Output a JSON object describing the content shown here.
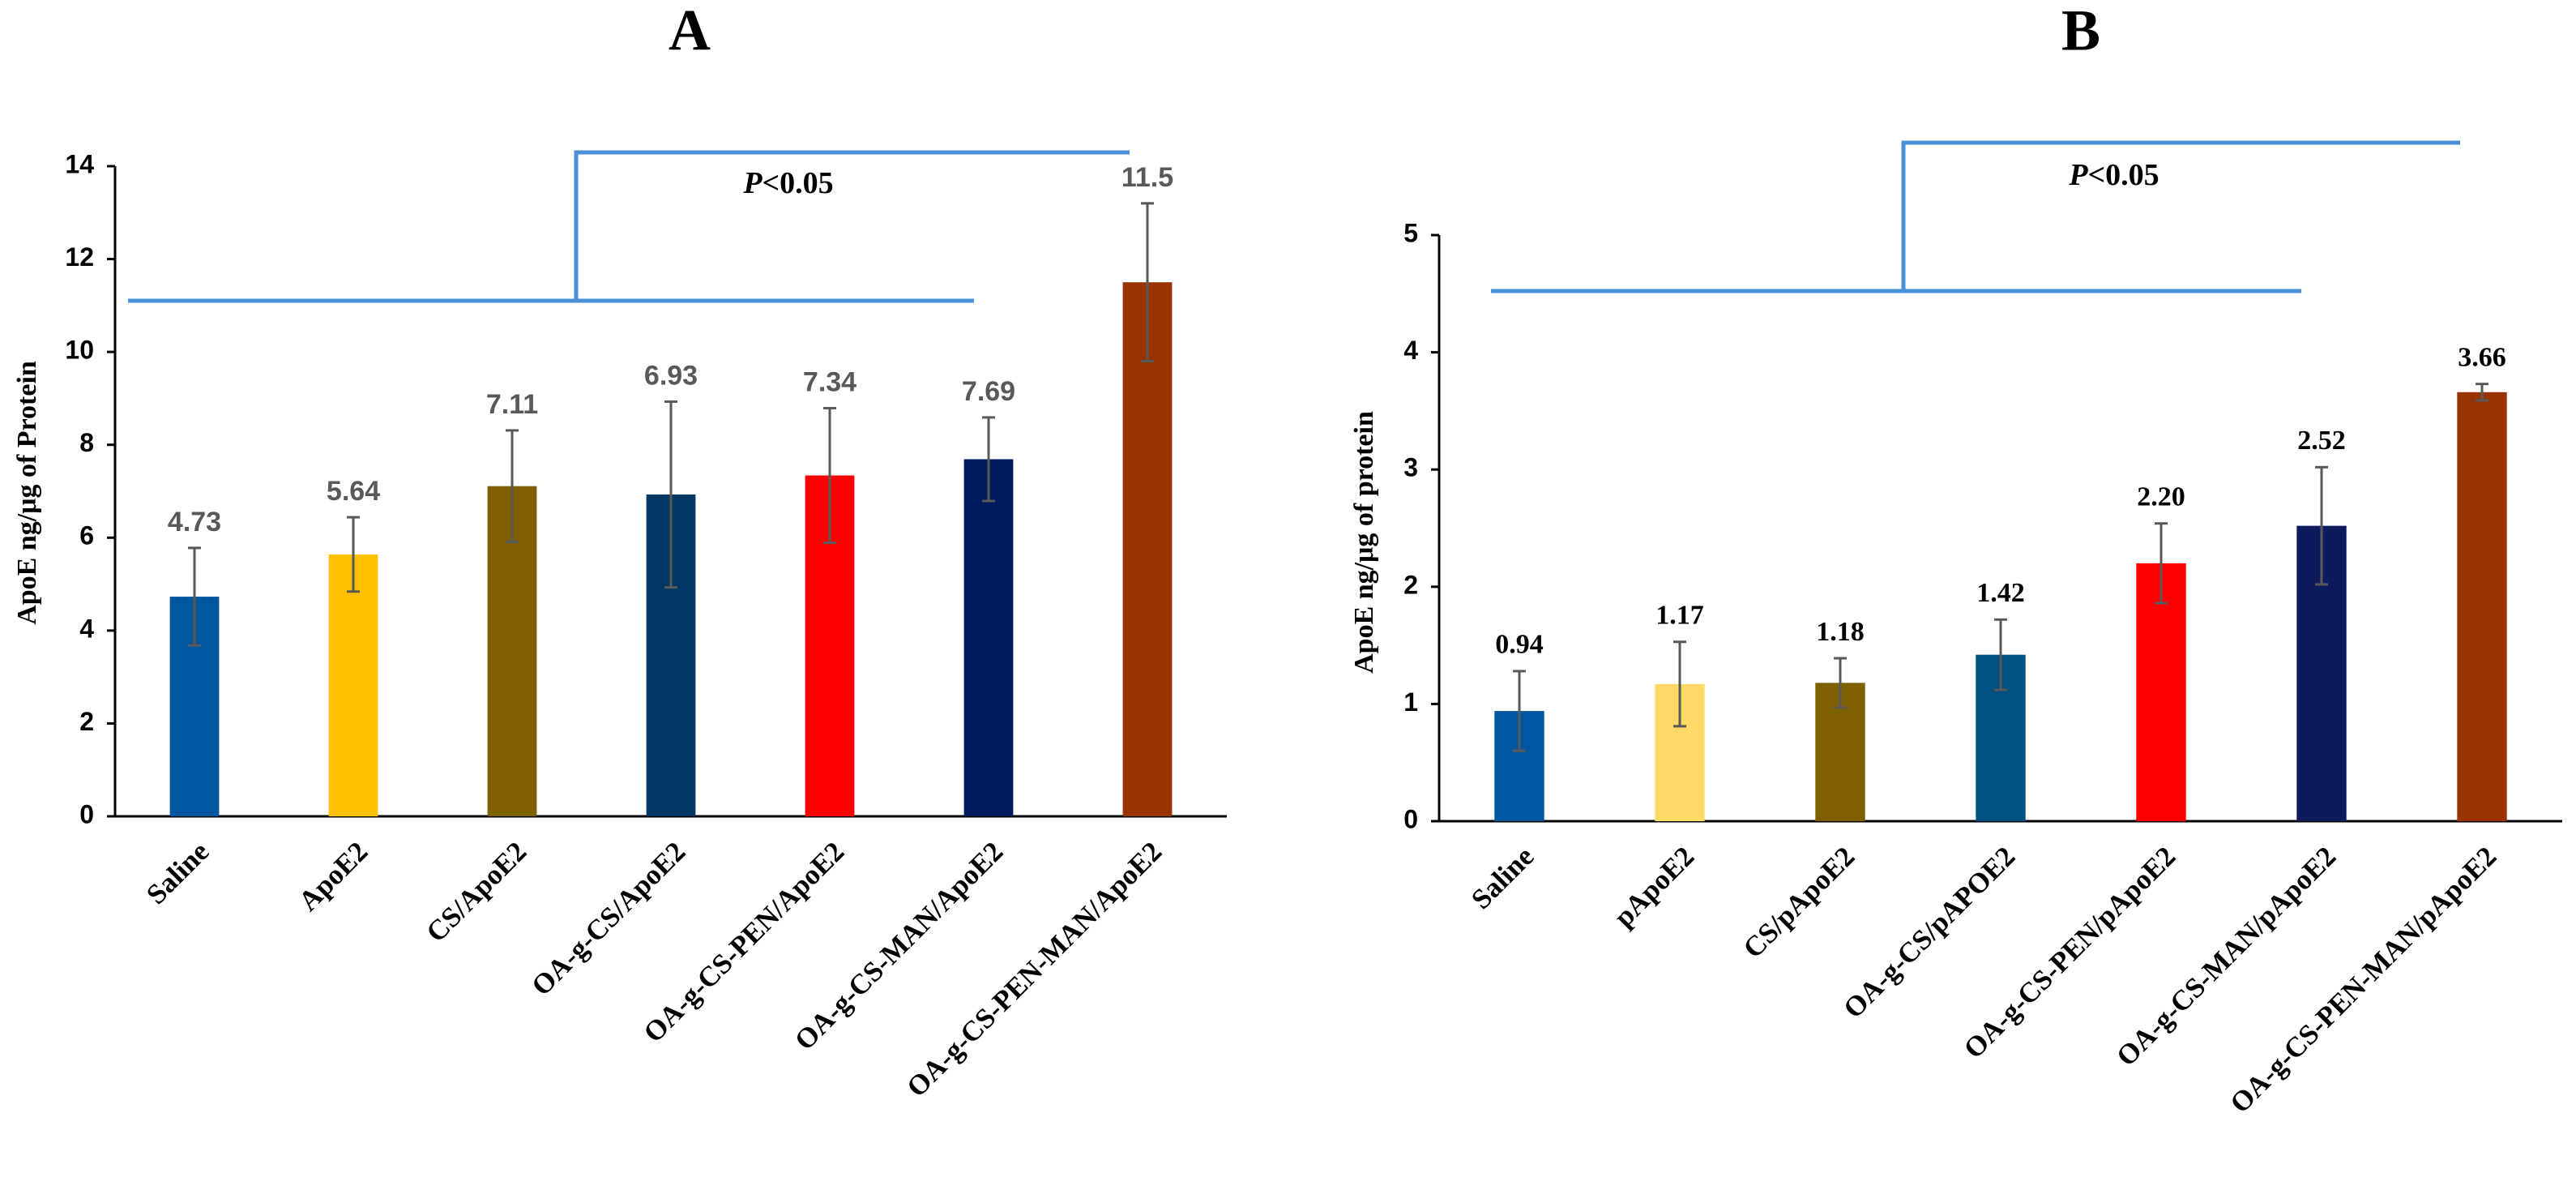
{
  "chart_data": [
    {
      "type": "bar",
      "title": "A",
      "y_label": "ApoE ng/μg of Protein",
      "categories": [
        "Saline",
        "ApoE2",
        "CS/ApoE2",
        "OA-g-CS/ApoE2",
        "OA-g-CS-PEN/ApoE2",
        "OA-g-CS-MAN/ApoE2",
        "OA-g-CS-PEN-MAN/ApoE2"
      ],
      "values": [
        4.73,
        5.64,
        7.11,
        6.93,
        7.34,
        7.69,
        11.5
      ],
      "errors": [
        1.05,
        0.8,
        1.2,
        2.0,
        1.45,
        0.9,
        1.7
      ],
      "colors": [
        "#0057a0",
        "#ffc000",
        "#7f6000",
        "#003764",
        "#ff0000",
        "#001a5e",
        "#993300"
      ],
      "ylim": [
        0,
        14
      ],
      "yticks": [
        0,
        2,
        4,
        6,
        8,
        10,
        12,
        14
      ],
      "annotation": {
        "italic": "P",
        "rest": "<0.05"
      }
    },
    {
      "type": "bar",
      "title": "B",
      "y_label": "ApoE ng/μg of protein",
      "categories": [
        "Saline",
        "pApoE2",
        "CS/pApoE2",
        "OA-g-CS/pAPOE2",
        "OA-g-CS-PEN/pApoE2",
        "OA-g-CS-MAN/pApoE2",
        "OA-g-CS-PEN-MAN/pApoE2"
      ],
      "values": [
        0.94,
        1.17,
        1.18,
        1.42,
        2.2,
        2.52,
        3.66
      ],
      "value_labels": [
        "0.94",
        "1.17",
        "1.18",
        "1.42",
        "2.20",
        "2.52",
        "3.66"
      ],
      "errors": [
        0.34,
        0.36,
        0.21,
        0.3,
        0.34,
        0.5,
        0.07
      ],
      "colors": [
        "#0057a0",
        "#ffd966",
        "#7f6000",
        "#005080",
        "#ff0000",
        "#0d1a5e",
        "#993300"
      ],
      "ylim": [
        0,
        5
      ],
      "yticks": [
        0,
        1,
        2,
        3,
        4,
        5
      ],
      "annotation": {
        "italic": "P",
        "rest": "<0.05"
      }
    }
  ]
}
